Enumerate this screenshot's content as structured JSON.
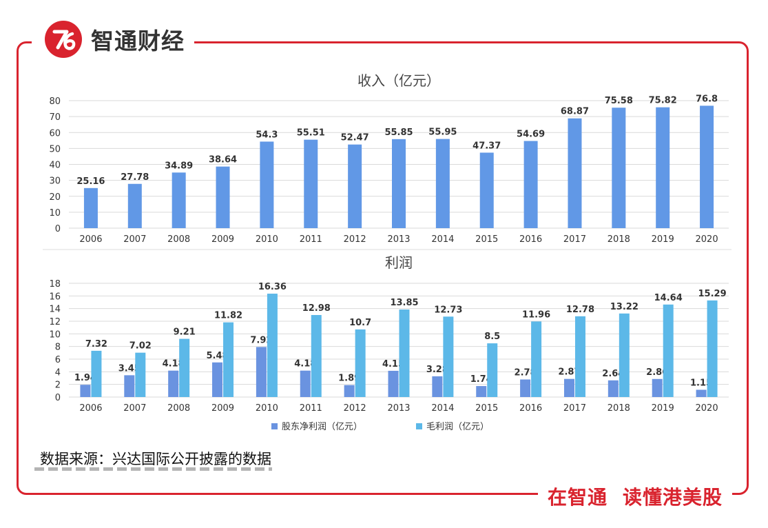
{
  "brand": {
    "name": "智通财经",
    "slogan_left": "在智通",
    "slogan_right": "读懂港美股"
  },
  "source_note": "数据来源：兴达国际公开披露的数据",
  "colors": {
    "revenue": "#6198e6",
    "net_profit": "#6a93e0",
    "gross_profit": "#5cb8e8",
    "frame": "#d9232e",
    "logo": "#d9232e",
    "grid": "#d9d9d9",
    "text": "#333333"
  },
  "chart_data": [
    {
      "type": "bar",
      "title": "收入（亿元）",
      "categories": [
        "2006",
        "2007",
        "2008",
        "2009",
        "2010",
        "2011",
        "2012",
        "2013",
        "2014",
        "2015",
        "2016",
        "2017",
        "2018",
        "2019",
        "2020"
      ],
      "series": [
        {
          "values": [
            25.16,
            27.78,
            34.89,
            38.64,
            54.3,
            55.51,
            52.47,
            55.85,
            55.95,
            47.37,
            54.69,
            68.87,
            75.58,
            75.82,
            76.8
          ],
          "labels": [
            "25.16",
            "27.78",
            "34.89",
            "38.64",
            "54.3",
            "55.51",
            "52.47",
            "55.85",
            "55.95",
            "47.37",
            "54.69",
            "68.87",
            "75.58",
            "75.82",
            "76.8"
          ]
        }
      ],
      "ylim": [
        0,
        80
      ],
      "yticks": [
        0,
        10,
        20,
        30,
        40,
        50,
        60,
        70,
        80
      ],
      "grid": true
    },
    {
      "type": "bar",
      "title": "利润",
      "categories": [
        "2006",
        "2007",
        "2008",
        "2009",
        "2010",
        "2011",
        "2012",
        "2013",
        "2014",
        "2015",
        "2016",
        "2017",
        "2018",
        "2019",
        "2020"
      ],
      "series": [
        {
          "name": "股东净利润（亿元）",
          "values": [
            1.94,
            3.45,
            4.18,
            5.48,
            7.92,
            4.18,
            1.89,
            4.15,
            3.28,
            1.74,
            2.78,
            2.87,
            2.64,
            2.86,
            1.15
          ],
          "labels": [
            "1.94",
            "3.45",
            "4.18",
            "5.48",
            "7.92",
            "4.18",
            "1.89",
            "4.15",
            "3.28",
            "1.74",
            "2.78",
            "2.87",
            "2.64",
            "2.86",
            "1.15"
          ]
        },
        {
          "name": "毛利润（亿元）",
          "values": [
            7.32,
            7.02,
            9.21,
            11.82,
            16.36,
            12.98,
            10.7,
            13.85,
            12.73,
            8.5,
            11.96,
            12.78,
            13.22,
            14.64,
            15.29
          ],
          "labels": [
            "7.32",
            "7.02",
            "9.21",
            "11.82",
            "16.36",
            "12.98",
            "10.7",
            "13.85",
            "12.73",
            "8.5",
            "11.96",
            "12.78",
            "13.22",
            "14.64",
            "15.29"
          ]
        }
      ],
      "ylim": [
        0,
        18
      ],
      "yticks": [
        0,
        2,
        4,
        6,
        8,
        10,
        12,
        14,
        16,
        18
      ],
      "grid": true,
      "legend": "bottom"
    }
  ]
}
